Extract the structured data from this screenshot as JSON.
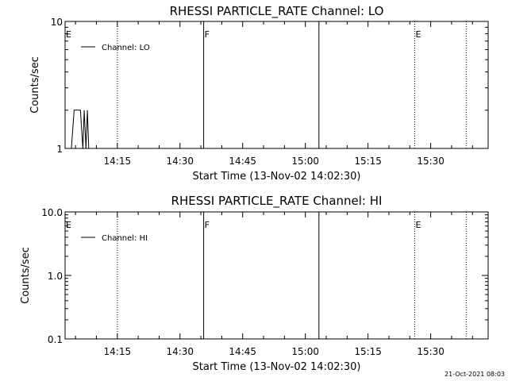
{
  "chart_data": [
    {
      "type": "line",
      "title": "RHESSI PARTICLE_RATE Channel: LO",
      "xlabel": "Start Time (13-Nov-02 14:02:30)",
      "ylabel": "Counts/sec",
      "y_scale": "log",
      "ylim": [
        1,
        10
      ],
      "y_ticks": [
        1,
        10
      ],
      "y_tick_labels": [
        "1",
        "10"
      ],
      "xlim": [
        "14:02:30",
        "15:43:45"
      ],
      "x_ticks": [
        "14:15",
        "14:30",
        "14:45",
        "15:00",
        "15:15",
        "15:30"
      ],
      "legend": {
        "placement": "top-left",
        "entries": [
          "Channel: LO"
        ]
      },
      "series": [
        {
          "name": "Channel: LO",
          "color": "#000000",
          "x": [
            "14:04:00",
            "14:04:40",
            "14:05:15",
            "14:06:10",
            "14:06:45",
            "14:07:05",
            "14:07:30",
            "14:07:50",
            "14:08:10"
          ],
          "y": [
            1,
            2,
            2,
            2,
            1,
            2,
            1,
            2,
            1
          ]
        }
      ],
      "vertical_markers": [
        {
          "time": "14:15:00",
          "style": "dotted"
        },
        {
          "time": "14:35:40",
          "style": "solid"
        },
        {
          "time": "15:03:15",
          "style": "solid"
        },
        {
          "time": "15:26:10",
          "style": "dotted"
        },
        {
          "time": "15:38:30",
          "style": "dotted"
        }
      ],
      "flags": [
        {
          "time": "14:02:30",
          "label": "E"
        },
        {
          "time": "14:35:40",
          "label": "F"
        },
        {
          "time": "15:26:10",
          "label": "E"
        }
      ]
    },
    {
      "type": "line",
      "title": "RHESSI PARTICLE_RATE Channel: HI",
      "xlabel": "Start Time (13-Nov-02 14:02:30)",
      "ylabel": "Counts/sec",
      "y_scale": "log",
      "ylim": [
        0.1,
        10
      ],
      "y_ticks": [
        0.1,
        1,
        10
      ],
      "y_tick_labels": [
        "0.1",
        "1.0",
        "10.0"
      ],
      "xlim": [
        "14:02:30",
        "15:43:45"
      ],
      "x_ticks": [
        "14:15",
        "14:30",
        "14:45",
        "15:00",
        "15:15",
        "15:30"
      ],
      "legend": {
        "placement": "top-left",
        "entries": [
          "Channel: HI"
        ]
      },
      "series": [
        {
          "name": "Channel: HI",
          "color": "#000000",
          "x": [],
          "y": []
        }
      ],
      "vertical_markers": [
        {
          "time": "14:15:00",
          "style": "dotted"
        },
        {
          "time": "14:35:40",
          "style": "solid"
        },
        {
          "time": "15:03:15",
          "style": "solid"
        },
        {
          "time": "15:26:10",
          "style": "dotted"
        },
        {
          "time": "15:38:30",
          "style": "dotted"
        }
      ],
      "flags": [
        {
          "time": "14:02:30",
          "label": "E"
        },
        {
          "time": "14:35:40",
          "label": "F"
        },
        {
          "time": "15:26:10",
          "label": "E"
        }
      ]
    }
  ],
  "footer": {
    "timestamp": "21-Oct-2021 08:03"
  }
}
